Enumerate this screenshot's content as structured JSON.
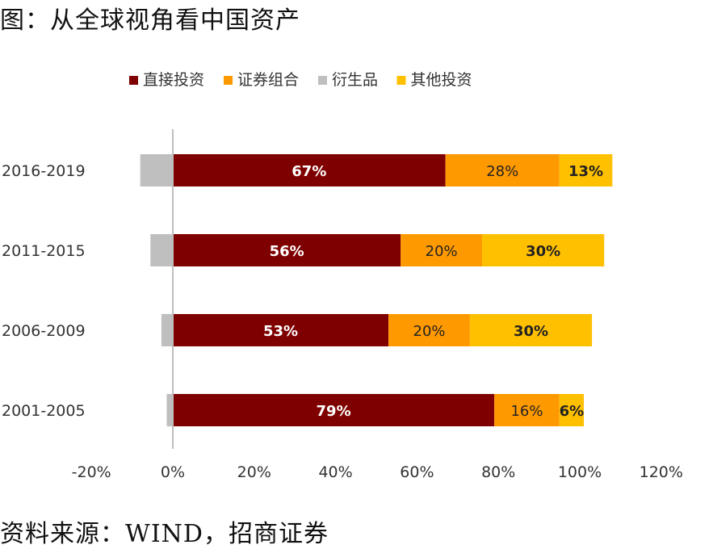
{
  "header": {
    "title": "图：从全球视角看中国资产"
  },
  "footer": {
    "source": "资料来源：WIND，招商证券"
  },
  "chart_data": {
    "type": "bar",
    "orientation": "horizontal",
    "stacked": true,
    "categories": [
      "2016-2019",
      "2011-2015",
      "2006-2009",
      "2001-2005"
    ],
    "series": [
      {
        "name": "直接投资",
        "color": "#7f0000",
        "values": [
          0.67,
          0.56,
          0.53,
          0.79
        ],
        "labels": [
          "67%",
          "56%",
          "53%",
          "79%"
        ],
        "label_color": "#ffffff",
        "label_bold": true
      },
      {
        "name": "证券组合",
        "color": "#ff9900",
        "values": [
          0.28,
          0.2,
          0.2,
          0.16
        ],
        "labels": [
          "28%",
          "20%",
          "20%",
          "16%"
        ],
        "label_color": "#222222",
        "label_bold": false
      },
      {
        "name": "衍生品",
        "color": "#bfbfbf",
        "values": [
          -0.08,
          -0.055,
          -0.028,
          -0.015
        ],
        "labels": [
          "",
          "",
          "",
          ""
        ],
        "label_color": "#222222",
        "label_bold": false
      },
      {
        "name": "其他投资",
        "color": "#ffc000",
        "values": [
          0.13,
          0.3,
          0.3,
          0.06
        ],
        "labels": [
          "13%",
          "30%",
          "30%",
          "6%"
        ],
        "label_color": "#222222",
        "label_bold": true
      }
    ],
    "stack_order": [
      "直接投资",
      "证券组合",
      "其他投资"
    ],
    "xlim": [
      -0.2,
      1.2
    ],
    "xticks": [
      -0.2,
      0,
      0.2,
      0.4,
      0.6,
      0.8,
      1.0,
      1.2
    ],
    "xtick_labels": [
      "-20%",
      "0%",
      "20%",
      "40%",
      "60%",
      "80%",
      "100%",
      "120%"
    ],
    "legend_position": "top",
    "grid": false,
    "title": "",
    "xlabel": "",
    "ylabel": ""
  }
}
